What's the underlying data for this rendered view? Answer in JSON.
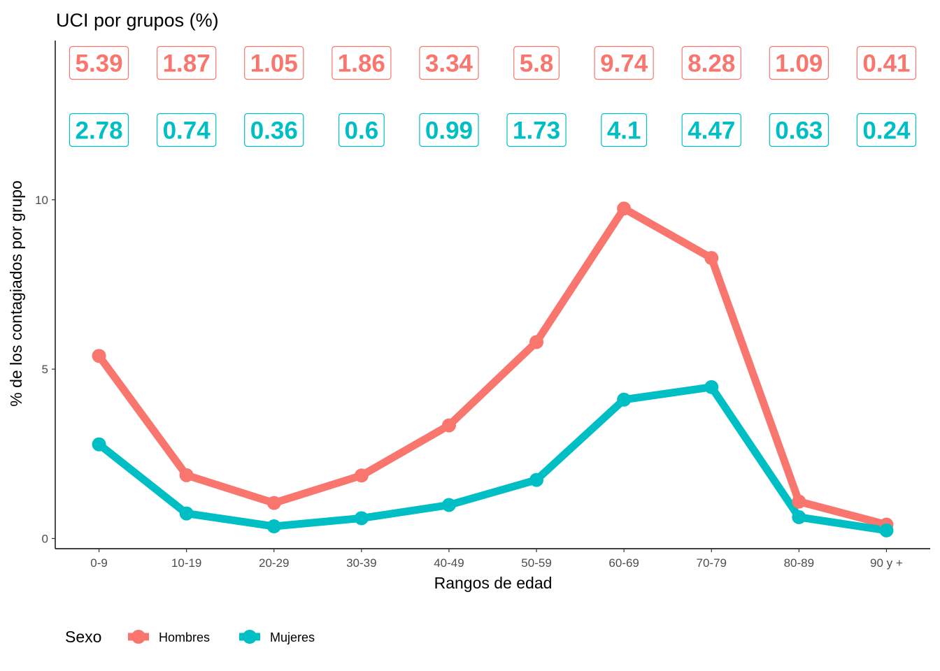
{
  "chart_data": {
    "type": "line",
    "title": "UCI por grupos (%)",
    "xlabel": "Rangos de edad",
    "ylabel": "% de los contagiados por grupo",
    "categories": [
      "0-9",
      "10-19",
      "20-29",
      "30-39",
      "40-49",
      "50-59",
      "60-69",
      "70-79",
      "80-89",
      "90 y +"
    ],
    "yticks": [
      0,
      5,
      10
    ],
    "ylim": [
      -0.3,
      14.7
    ],
    "grid": false,
    "legend": {
      "title": "Sexo",
      "position": "bottom-left"
    },
    "series": [
      {
        "name": "Hombres",
        "color": "#F8766D",
        "values": [
          5.39,
          1.87,
          1.05,
          1.86,
          3.34,
          5.8,
          9.74,
          8.28,
          1.09,
          0.41
        ],
        "labels": [
          "5.39",
          "1.87",
          "1.05",
          "1.86",
          "3.34",
          "5.8",
          "9.74",
          "8.28",
          "1.09",
          "0.41"
        ]
      },
      {
        "name": "Mujeres",
        "color": "#00BFC4",
        "values": [
          2.78,
          0.74,
          0.36,
          0.6,
          0.99,
          1.73,
          4.1,
          4.47,
          0.63,
          0.24
        ],
        "labels": [
          "2.78",
          "0.74",
          "0.36",
          "0.6",
          "0.99",
          "1.73",
          "4.1",
          "4.47",
          "0.63",
          "0.24"
        ]
      }
    ]
  }
}
